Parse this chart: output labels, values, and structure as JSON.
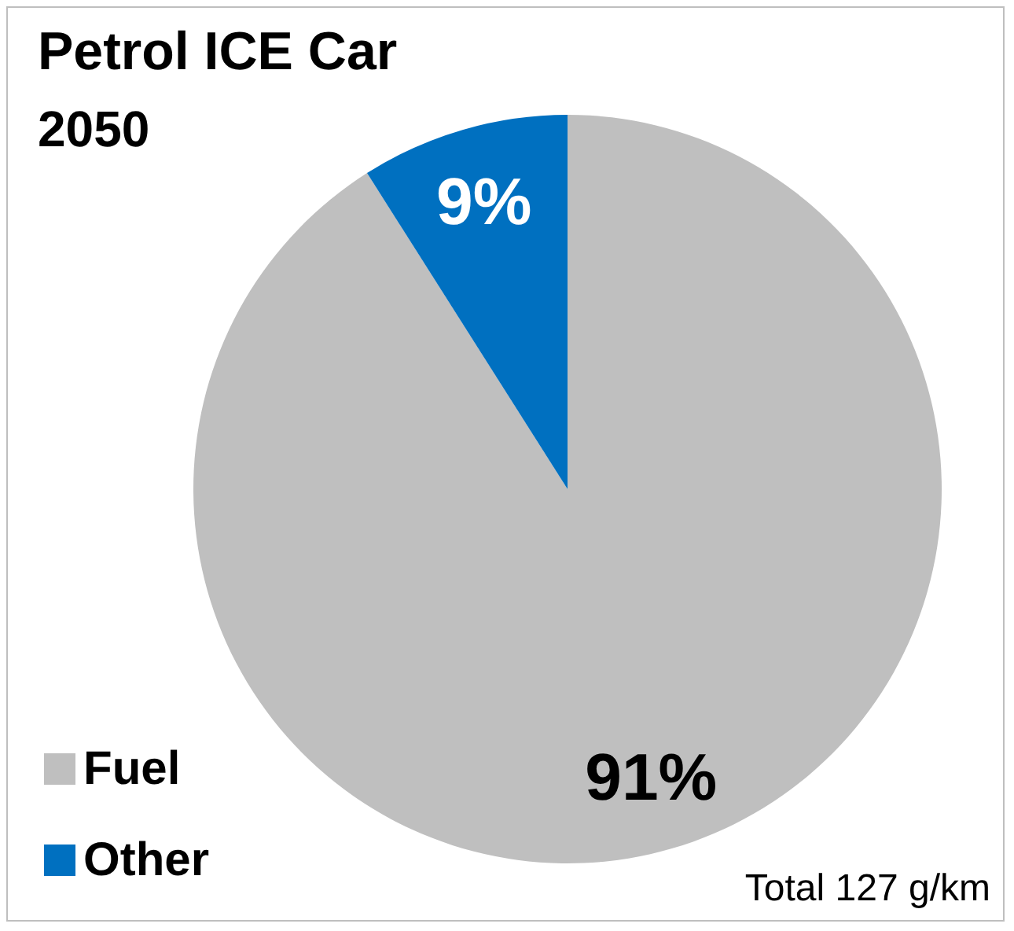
{
  "chart_data": {
    "type": "pie",
    "title": "Petrol ICE Car",
    "subtitle": "2050",
    "categories": [
      "Fuel",
      "Other"
    ],
    "values": [
      91,
      9
    ],
    "colors": [
      "#bfbfbf",
      "#0070c0"
    ],
    "value_labels": [
      "91%",
      "9%"
    ],
    "legend": "bottom left",
    "annotations": [
      "Total 127 g/km"
    ]
  }
}
